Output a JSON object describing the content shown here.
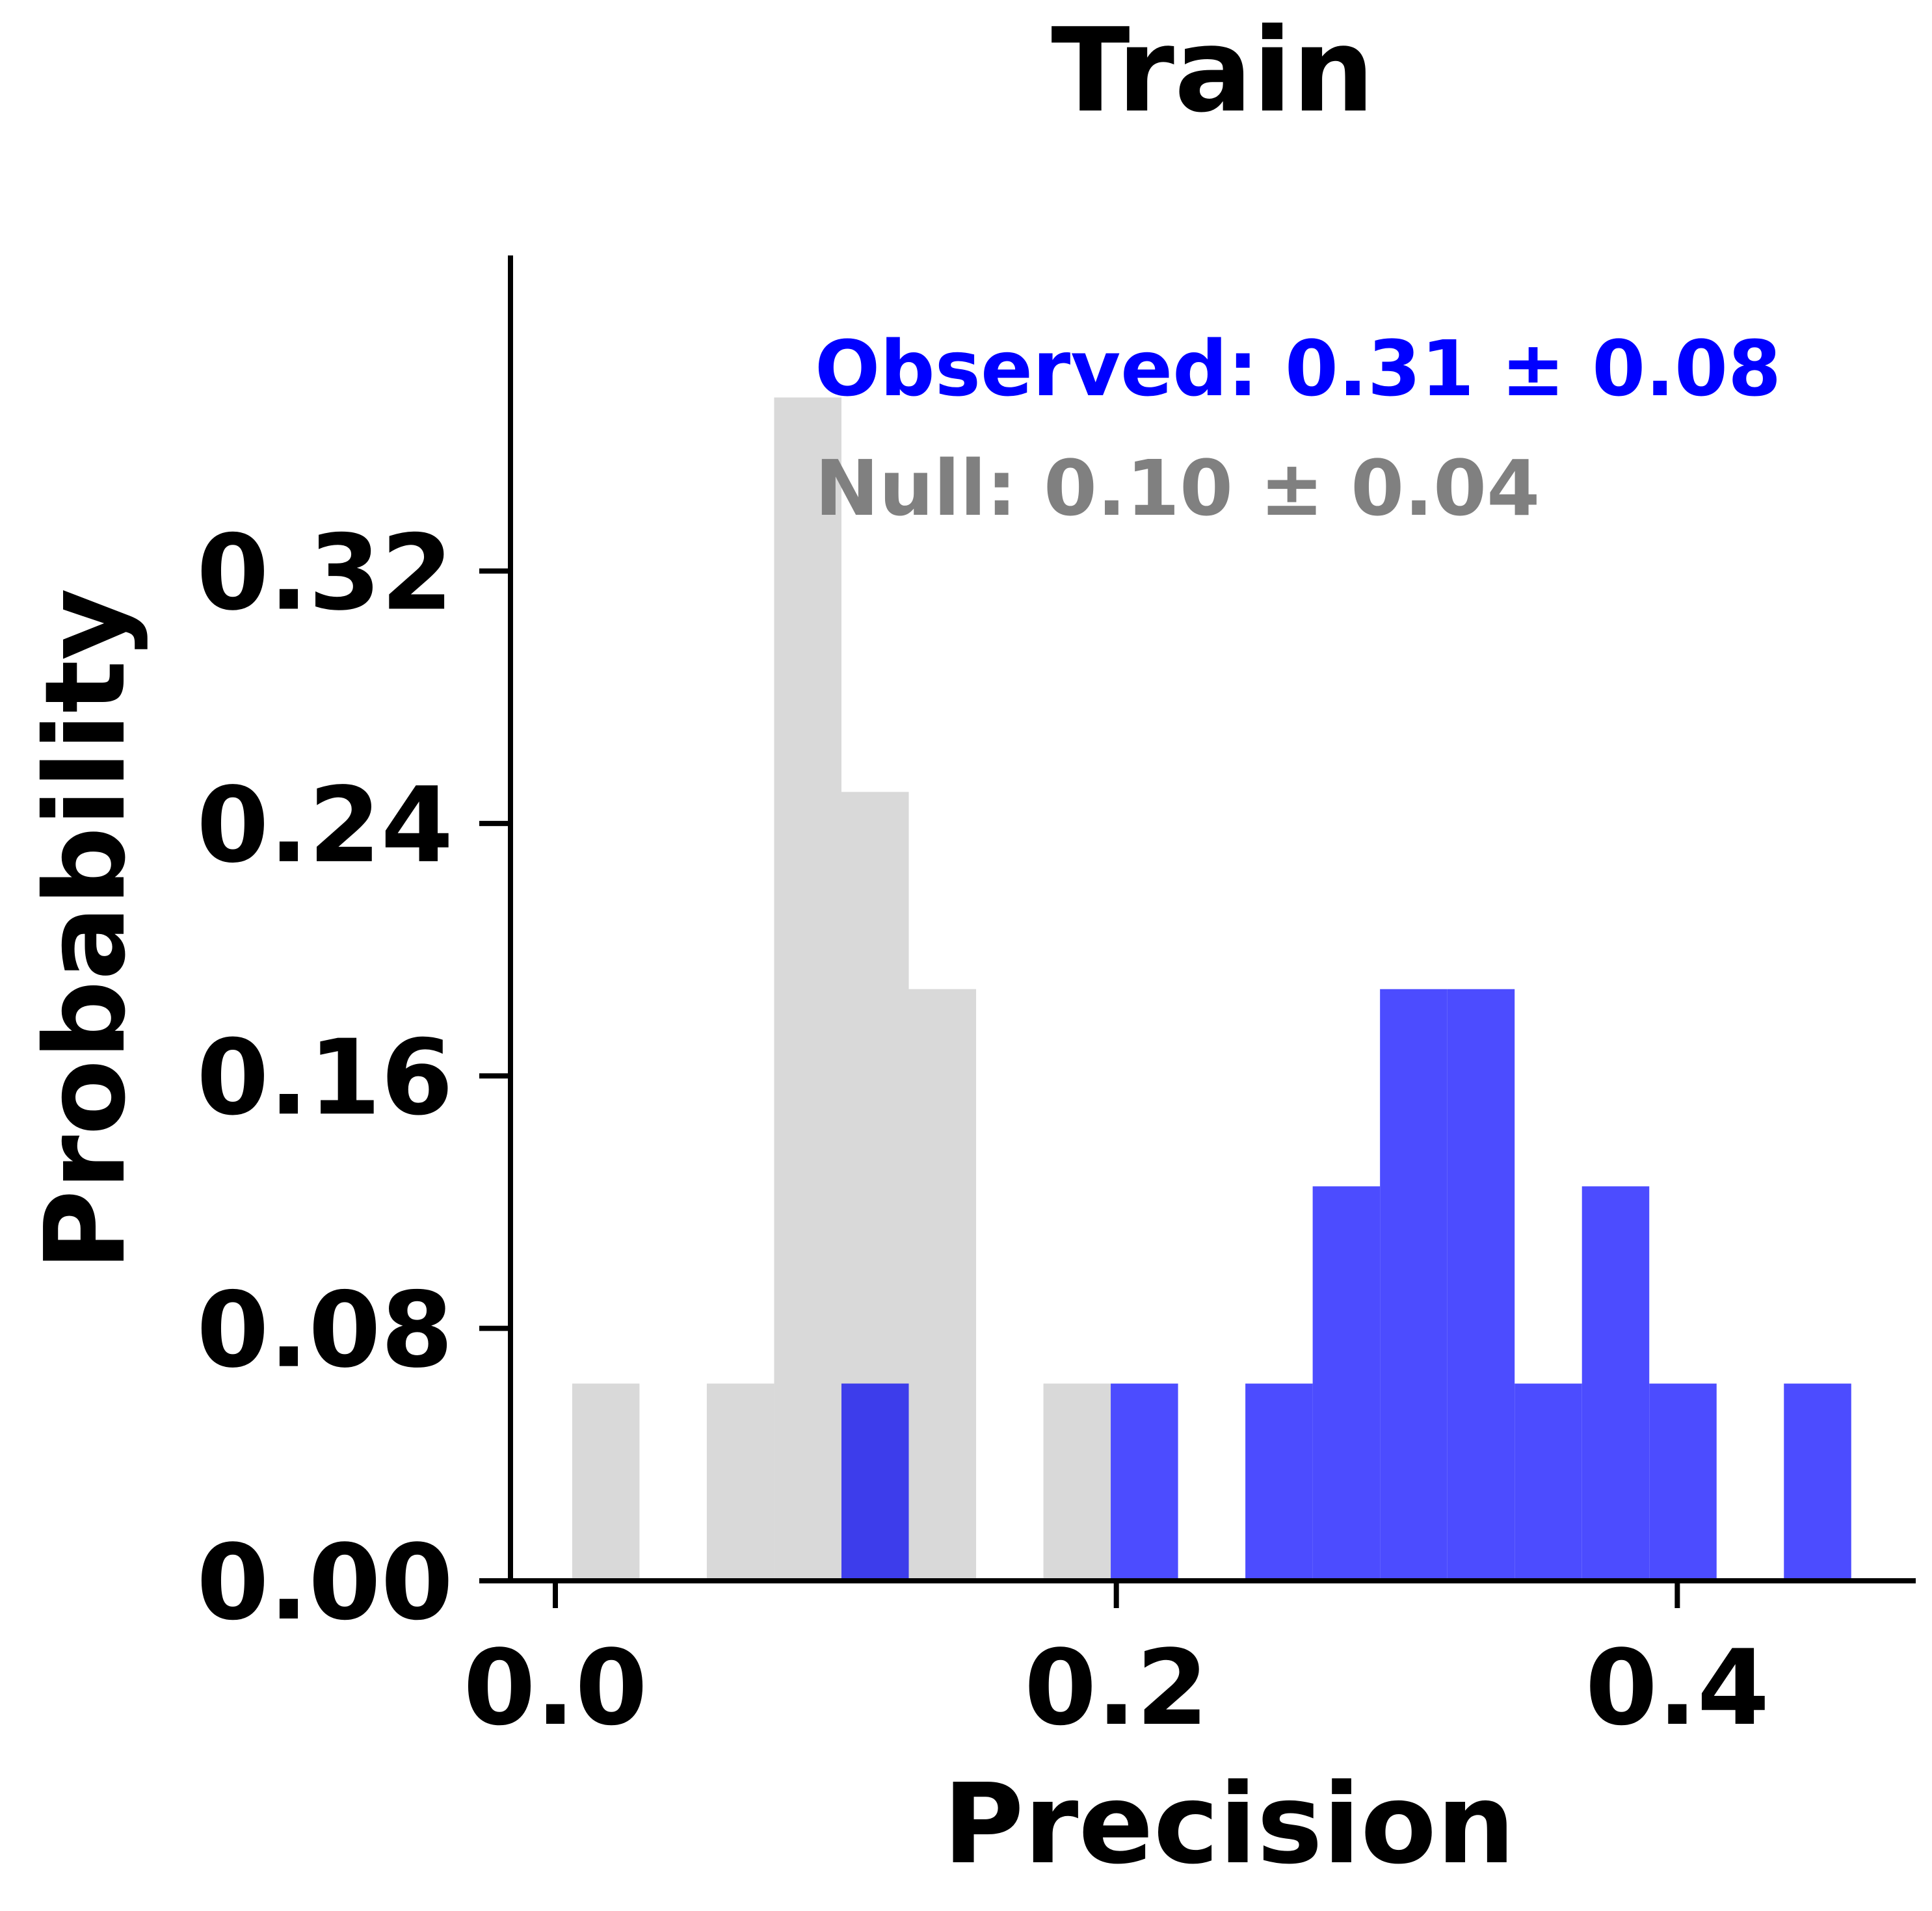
{
  "chart_data": {
    "type": "histogram",
    "title": "Train",
    "xlabel": "Precision",
    "ylabel": "Probability",
    "xlim": [
      -0.016,
      0.485
    ],
    "ylim": [
      0,
      0.42
    ],
    "xticks": [
      {
        "value": 0.0,
        "label": "0.0"
      },
      {
        "value": 0.2,
        "label": "0.2"
      },
      {
        "value": 0.4,
        "label": "0.4"
      }
    ],
    "yticks": [
      {
        "value": 0.0,
        "label": "0.00"
      },
      {
        "value": 0.08,
        "label": "0.08"
      },
      {
        "value": 0.16,
        "label": "0.16"
      },
      {
        "value": 0.24,
        "label": "0.24"
      },
      {
        "value": 0.32,
        "label": "0.32"
      }
    ],
    "grid": false,
    "series": [
      {
        "name": "Null",
        "color": "#d9d9d9",
        "bins": [
          {
            "x0": 0.006,
            "x1": 0.03,
            "y": 0.0625
          },
          {
            "x0": 0.054,
            "x1": 0.078,
            "y": 0.0625
          },
          {
            "x0": 0.078,
            "x1": 0.102,
            "y": 0.375
          },
          {
            "x0": 0.102,
            "x1": 0.126,
            "y": 0.25
          },
          {
            "x0": 0.126,
            "x1": 0.15,
            "y": 0.1875
          },
          {
            "x0": 0.174,
            "x1": 0.198,
            "y": 0.0625
          }
        ]
      },
      {
        "name": "Observed",
        "color": "#4c4cff",
        "bins": [
          {
            "x0": 0.102,
            "x1": 0.126,
            "y": 0.0625
          },
          {
            "x0": 0.198,
            "x1": 0.222,
            "y": 0.0625
          },
          {
            "x0": 0.246,
            "x1": 0.27,
            "y": 0.0625
          },
          {
            "x0": 0.27,
            "x1": 0.294,
            "y": 0.125
          },
          {
            "x0": 0.294,
            "x1": 0.318,
            "y": 0.1875
          },
          {
            "x0": 0.318,
            "x1": 0.342,
            "y": 0.1875
          },
          {
            "x0": 0.342,
            "x1": 0.366,
            "y": 0.0625
          },
          {
            "x0": 0.366,
            "x1": 0.39,
            "y": 0.125
          },
          {
            "x0": 0.39,
            "x1": 0.414,
            "y": 0.0625
          },
          {
            "x0": 0.438,
            "x1": 0.462,
            "y": 0.0625
          }
        ]
      }
    ],
    "overlap_color": "#3d3deb",
    "annotations": [
      {
        "text": "Observed: 0.31 ± 0.08",
        "color": "#0000ff"
      },
      {
        "text": "Null: 0.10 ± 0.04",
        "color": "#808080"
      }
    ]
  }
}
